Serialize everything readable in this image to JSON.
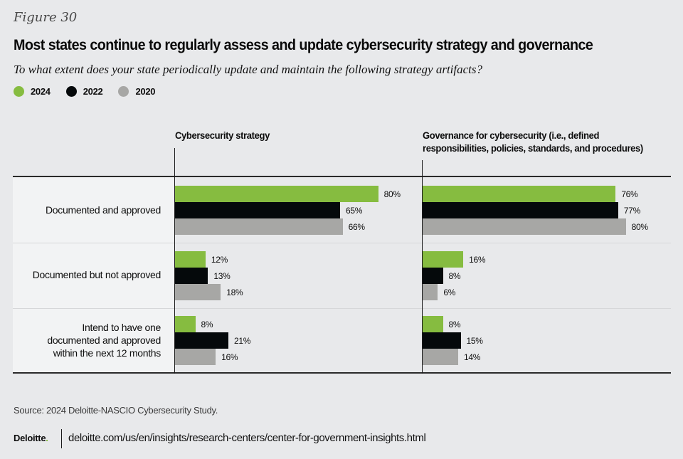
{
  "figure_label": "Figure 30",
  "title": "Most states continue to regularly assess and update cybersecurity strategy and governance",
  "subtitle": "To what extent does your state periodically update and maintain the following strategy artifacts?",
  "colors": {
    "2024": "#86bc40",
    "2022": "#05090b",
    "2020": "#a7a7a5"
  },
  "legend": [
    {
      "label": "2024",
      "color": "#86bc40"
    },
    {
      "label": "2022",
      "color": "#05090b"
    },
    {
      "label": "2020",
      "color": "#a7a7a5"
    }
  ],
  "chart_data": {
    "type": "bar",
    "orientation": "horizontal",
    "title": "Most states continue to regularly assess and update cybersecurity strategy and governance",
    "subtitle": "To what extent does your state periodically update and maintain the following strategy artifacts?",
    "categories": [
      "Documented and approved",
      "Documented but not approved",
      "Intend to have one documented and approved within the next 12 months"
    ],
    "category_lines": [
      [
        "Documented and approved"
      ],
      [
        "Documented but not approved"
      ],
      [
        "Intend to have one",
        "documented and approved",
        "within the next 12 months"
      ]
    ],
    "legend": [
      "2024",
      "2022",
      "2020"
    ],
    "legend_position": "top-left",
    "unit": "%",
    "xlim": [
      0,
      100
    ],
    "grid": false,
    "panels": [
      {
        "title_lines": [
          "Cybersecurity strategy"
        ],
        "series": [
          {
            "name": "2024",
            "values": [
              80,
              12,
              8
            ]
          },
          {
            "name": "2022",
            "values": [
              65,
              13,
              21
            ]
          },
          {
            "name": "2020",
            "values": [
              66,
              18,
              16
            ]
          }
        ]
      },
      {
        "title_lines": [
          "Governance for cybersecurity (i.e., defined",
          "responsibilities, policies, standards, and procedures)"
        ],
        "series": [
          {
            "name": "2024",
            "values": [
              76,
              16,
              8
            ]
          },
          {
            "name": "2022",
            "values": [
              77,
              8,
              15
            ]
          },
          {
            "name": "2020",
            "values": [
              80,
              6,
              14
            ]
          }
        ]
      }
    ]
  },
  "footer": {
    "source": "Source: 2024 Deloitte-NASCIO Cybersecurity Study.",
    "logo_text": "Deloitte",
    "logo_dot": ".",
    "url": "deloitte.com/us/en/insights/research-centers/center-for-government-insights.html"
  }
}
